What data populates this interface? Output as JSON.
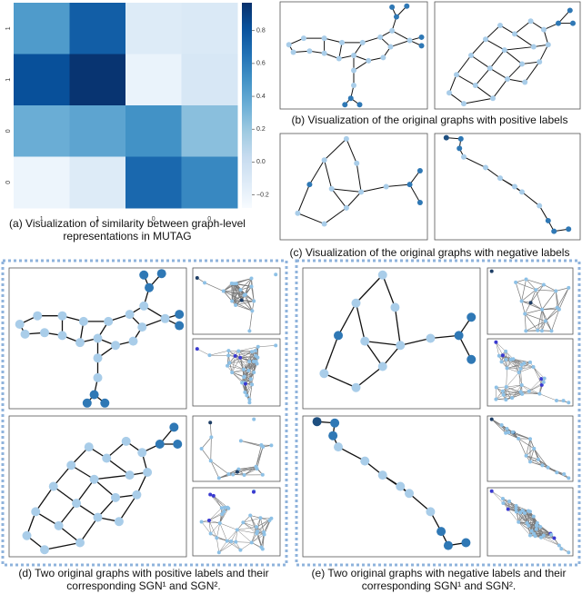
{
  "chart_data": {
    "type": "heatmap",
    "row_labels": [
      "1",
      "1",
      "0",
      "0"
    ],
    "col_labels": [
      "1",
      "1",
      "0",
      "0"
    ],
    "values": [
      [
        0.45,
        0.75,
        -0.12,
        -0.1
      ],
      [
        0.82,
        0.95,
        -0.2,
        -0.08
      ],
      [
        0.35,
        0.4,
        0.5,
        0.25
      ],
      [
        -0.22,
        -0.12,
        0.7,
        0.55
      ]
    ],
    "colormap": "Blues",
    "colorbar_lim": [
      -0.28,
      0.97
    ],
    "colorbar_ticks": [
      {
        "value": -0.2,
        "label": "−0.2"
      },
      {
        "value": 0,
        "label": "0.0"
      },
      0.2,
      0.4,
      0.6,
      0.8
    ]
  },
  "captions": {
    "a": "(a) Visualization of similarity between graph-level representations in MUTAG",
    "b": "(b) Visualization of the original graphs with positive labels",
    "c": "(c) Visualization of the original graphs with negative labels",
    "d": "(d) Two original graphs with positive labels and their corresponding SGN¹ and SGN².",
    "e": "(e) Two original graphs with negative labels and their corresponding SGN¹ and SGN²."
  }
}
